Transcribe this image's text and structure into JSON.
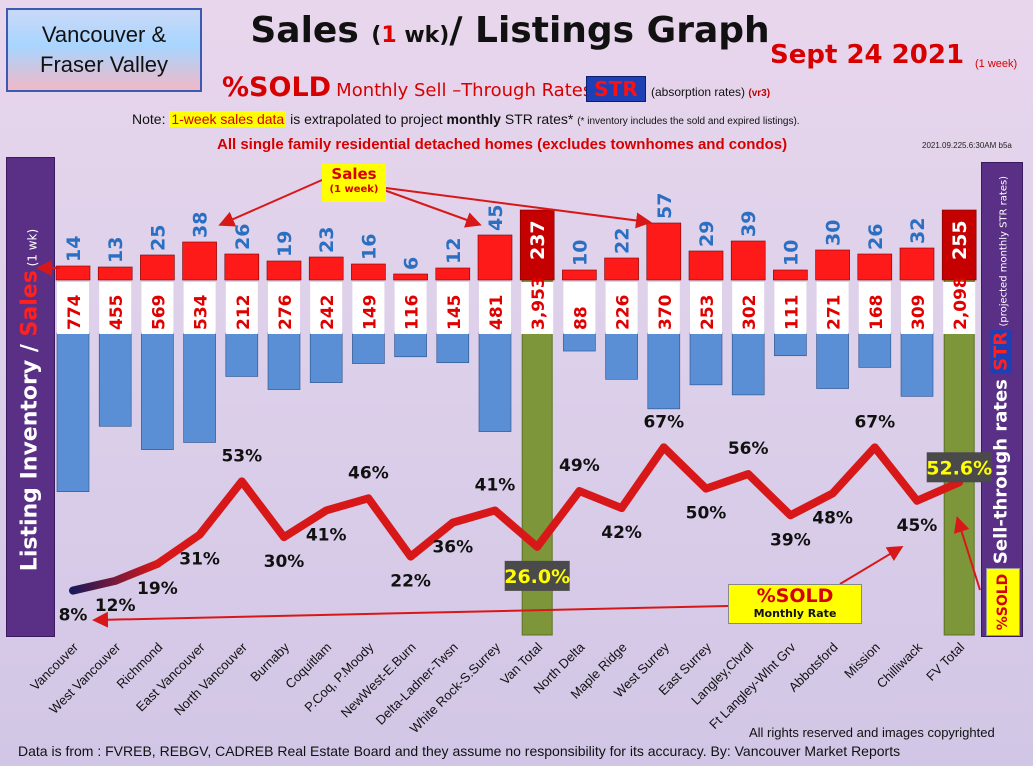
{
  "header": {
    "region_line1": "Vancouver &",
    "region_line2": "Fraser Valley",
    "title_part1": "Sales ",
    "title_paren_open": "(",
    "title_one": "1",
    "title_wk": " wk)",
    "title_part2": "/ Listings Graph",
    "date": "Sept 24  2021",
    "date_note": "(1 week)",
    "pct_sold": "%SOLD",
    "subtitle_label": "Monthly Sell –Through Rates",
    "str": "STR",
    "absorption": "(absorption rates)",
    "version": "(vr3)",
    "note_prefix": "Note: ",
    "note_highlight": "1-week sales data",
    "note_middle": " is extrapolated to project ",
    "note_bold": "monthly",
    "note_after": " STR rates* ",
    "note_fine": "(* inventory includes the sold and expired listings).",
    "detached_note": "All single family residential detached homes (excludes townhomes and condos)",
    "stamp": "2021.09.225.6:30AM b5a"
  },
  "side_labels": {
    "left_main": "Listing Inventory",
    "left_slash": " / ",
    "left_sales": "Sales",
    "left_small": " (1 wk)",
    "right_main": "Sell-through rates ",
    "right_str": "STR",
    "right_small": " (projected monthly STR rates)",
    "right_sold": "%SOLD"
  },
  "callouts": {
    "sales_line1": "Sales",
    "sales_line2": "(1 week)",
    "sold_line1": "%SOLD",
    "sold_line2": "Monthly Rate"
  },
  "footer": {
    "rights": "All rights reserved and  images copyrighted",
    "source": "Data is from : FVREB, REBGV, CADREB Real Estate Board and they assume no responsibility for its accuracy. By: Vancouver Market Reports"
  },
  "colors": {
    "sales_bar": "#ff1a1a",
    "total_sales_bar": "#c40000",
    "inventory_bar": "#5a8fd6",
    "total_column": "#7d963a",
    "line": "#d81818",
    "label_blue": "#2a6fc2",
    "label_red": "#e00000"
  },
  "chart_data": {
    "type": "bar",
    "categories": [
      "Vancouver",
      "West Vancouver",
      "Richmond",
      "East Vancouver",
      "North Vancouver",
      "Burnaby",
      "Coquitlam",
      "P.Coq, P.Moody",
      "NewWest-E.Burn",
      "Delta-Ladner-Twsn",
      "White Rock-S.Surrey",
      "Van Total",
      "North Delta",
      "Maple Ridge",
      "West Surrey",
      "East Surrey",
      "Langley,Clvrdl",
      "Ft Langley-Wlnt Grv",
      "Abbotsford",
      "Mission",
      "Chilliwack",
      "FV Total"
    ],
    "series": [
      {
        "name": "Sales",
        "values": [
          14,
          13,
          25,
          38,
          26,
          19,
          23,
          16,
          6,
          12,
          45,
          237,
          10,
          22,
          57,
          29,
          39,
          10,
          30,
          26,
          32,
          255
        ]
      },
      {
        "name": "Listing Inventory",
        "values": [
          774,
          455,
          569,
          534,
          212,
          276,
          242,
          149,
          116,
          145,
          481,
          3953,
          88,
          226,
          370,
          253,
          302,
          111,
          271,
          168,
          309,
          2098
        ]
      },
      {
        "name": "%SOLD",
        "values": [
          8,
          12,
          19,
          31,
          53,
          30,
          41,
          46,
          22,
          36,
          41,
          26.0,
          49,
          42,
          67,
          50,
          56,
          39,
          48,
          67,
          45,
          52.6
        ]
      }
    ],
    "sales_labels": [
      "14",
      "13",
      "25",
      "38",
      "26",
      "19",
      "23",
      "16",
      "6",
      "12",
      "45",
      "237",
      "10",
      "22",
      "57",
      "29",
      "39",
      "10",
      "30",
      "26",
      "32",
      "255"
    ],
    "inventory_labels": [
      "774",
      "455",
      "569",
      "534",
      "212",
      "276",
      "242",
      "149",
      "116",
      "145",
      "481",
      "3,953",
      "88",
      "226",
      "370",
      "253",
      "302",
      "111",
      "271",
      "168",
      "309",
      "2,098"
    ],
    "pct_labels": [
      "8%",
      "12%",
      "19%",
      "31%",
      "53%",
      "30%",
      "41%",
      "46%",
      "22%",
      "36%",
      "41%",
      "26.0%",
      "49%",
      "42%",
      "67%",
      "50%",
      "56%",
      "39%",
      "48%",
      "67%",
      "45%",
      "52.6%"
    ],
    "total_indices": [
      11,
      21
    ]
  }
}
